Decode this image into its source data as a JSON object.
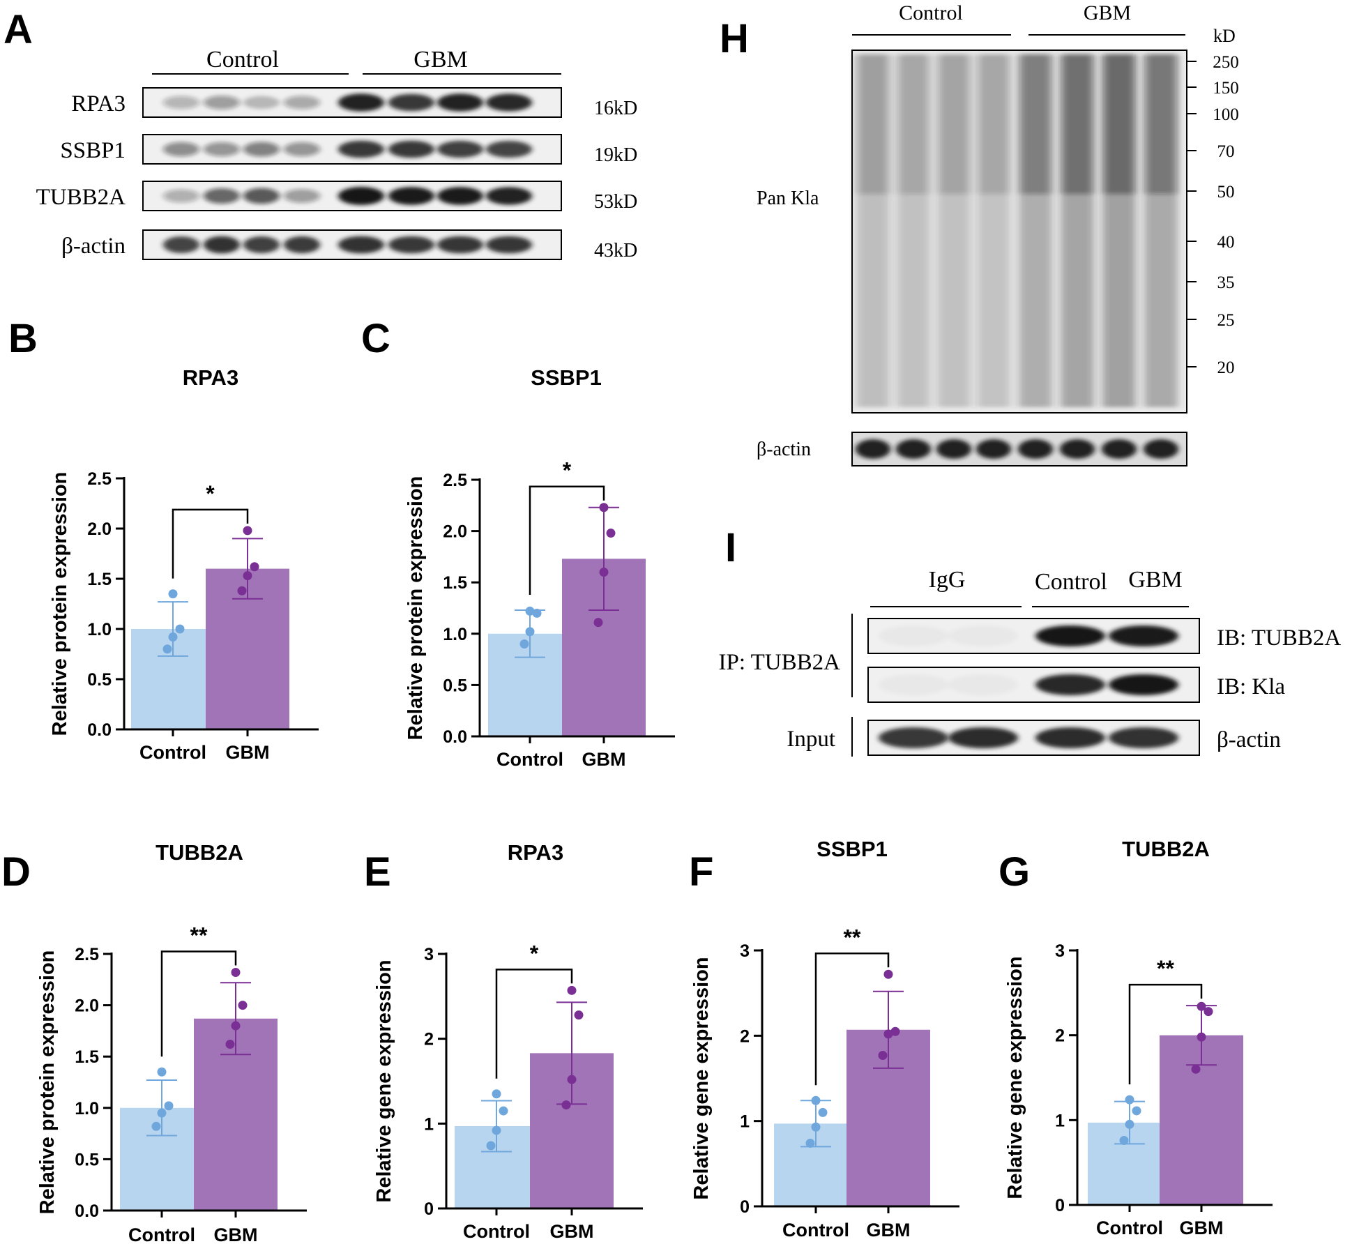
{
  "panel_letters": {
    "A": "A",
    "B": "B",
    "C": "C",
    "D": "D",
    "E": "E",
    "F": "F",
    "G": "G",
    "H": "H",
    "I": "I"
  },
  "colors": {
    "control_bar": "#b8d5ef",
    "control_dot": "#6fa7dc",
    "gbm_bar": "#a173b7",
    "gbm_dot": "#7a2f94",
    "blot_bg": "#f0f0f0",
    "band": "#151515"
  },
  "panel_a": {
    "groups": [
      "Control",
      "GBM"
    ],
    "rows": [
      {
        "name": "RPA3",
        "size": "16kD",
        "control": [
          0.28,
          0.38,
          0.24,
          0.33
        ],
        "gbm": [
          0.95,
          0.85,
          0.95,
          0.92
        ]
      },
      {
        "name": "SSBP1",
        "size": "19kD",
        "control": [
          0.45,
          0.42,
          0.5,
          0.42
        ],
        "gbm": [
          0.85,
          0.85,
          0.82,
          0.8
        ]
      },
      {
        "name": "TUBB2A",
        "size": "53kD",
        "control": [
          0.3,
          0.62,
          0.68,
          0.38
        ],
        "gbm": [
          1.0,
          0.98,
          0.98,
          0.95
        ]
      },
      {
        "name": "β-actin",
        "size": "43kD",
        "control": [
          0.8,
          0.88,
          0.82,
          0.84
        ],
        "gbm": [
          0.88,
          0.85,
          0.86,
          0.86
        ]
      }
    ]
  },
  "panel_h": {
    "groups": [
      "Control",
      "GBM"
    ],
    "kd_label": "kD",
    "markers": [
      "250",
      "150",
      "100",
      "70",
      "50",
      "40",
      "35",
      "25",
      "20"
    ],
    "label": "Pan Kla",
    "loading": "β-actin",
    "lane_intensity": [
      0.45,
      0.38,
      0.42,
      0.4,
      0.72,
      0.85,
      0.9,
      0.78
    ]
  },
  "panel_i": {
    "groups": [
      "IgG",
      "Control",
      "GBM"
    ],
    "ip_label": "IP: TUBB2A",
    "input_label": "Input",
    "rows": [
      {
        "name": "IB: TUBB2A",
        "bands": [
          0.03,
          0.03,
          1.0,
          0.98
        ]
      },
      {
        "name": "IB: Kla",
        "bands": [
          0.02,
          0.02,
          0.92,
          1.0
        ]
      },
      {
        "name": "β-actin",
        "bands": [
          0.85,
          0.9,
          0.9,
          0.88
        ]
      }
    ]
  },
  "chart_data": [
    {
      "panel": "B",
      "type": "bar",
      "title": "RPA3",
      "ylabel": "Relative protein expression",
      "categories": [
        "Control",
        "GBM"
      ],
      "ylim": [
        0,
        2.5
      ],
      "yticks": [
        "0.0",
        "0.5",
        "1.0",
        "1.5",
        "2.0",
        "2.5"
      ],
      "values": [
        1.0,
        1.6
      ],
      "error": [
        0.27,
        0.3
      ],
      "points": [
        [
          1.35,
          1.0,
          0.92,
          0.8
        ],
        [
          1.98,
          1.62,
          1.53,
          1.38
        ]
      ],
      "significance": "*"
    },
    {
      "panel": "C",
      "type": "bar",
      "title": "SSBP1",
      "ylabel": "Relative protein expression",
      "categories": [
        "Control",
        "GBM"
      ],
      "ylim": [
        0,
        2.5
      ],
      "yticks": [
        "0.0",
        "0.5",
        "1.0",
        "1.5",
        "2.0",
        "2.5"
      ],
      "values": [
        1.0,
        1.73
      ],
      "error": [
        0.23,
        0.5
      ],
      "points": [
        [
          1.22,
          1.2,
          1.02,
          0.9
        ],
        [
          2.23,
          1.98,
          1.6,
          1.11
        ]
      ],
      "significance": "*"
    },
    {
      "panel": "D",
      "type": "bar",
      "title": "TUBB2A",
      "ylabel": "Relative protein expression",
      "categories": [
        "Control",
        "GBM"
      ],
      "ylim": [
        0,
        2.5
      ],
      "yticks": [
        "0.0",
        "0.5",
        "1.0",
        "1.5",
        "2.0",
        "2.5"
      ],
      "values": [
        1.0,
        1.87
      ],
      "error": [
        0.27,
        0.35
      ],
      "points": [
        [
          1.35,
          1.02,
          0.95,
          0.82
        ],
        [
          2.32,
          2.0,
          1.8,
          1.62
        ]
      ],
      "significance": "**"
    },
    {
      "panel": "E",
      "type": "bar",
      "title": "RPA3",
      "ylabel": "Relative gene expression",
      "categories": [
        "Control",
        "GBM"
      ],
      "ylim": [
        0,
        3
      ],
      "yticks": [
        "0",
        "1",
        "2",
        "3"
      ],
      "values": [
        0.97,
        1.83
      ],
      "error": [
        0.3,
        0.6
      ],
      "points": [
        [
          1.35,
          1.15,
          0.92,
          0.74
        ],
        [
          2.57,
          2.28,
          1.52,
          1.22
        ]
      ],
      "significance": "*"
    },
    {
      "panel": "F",
      "type": "bar",
      "title": "SSBP1",
      "ylabel": "Relative gene expression",
      "categories": [
        "Control",
        "GBM"
      ],
      "ylim": [
        0,
        3
      ],
      "yticks": [
        "0",
        "1",
        "2",
        "3"
      ],
      "values": [
        0.97,
        2.07
      ],
      "error": [
        0.27,
        0.45
      ],
      "points": [
        [
          1.24,
          1.1,
          0.93,
          0.74
        ],
        [
          2.72,
          2.05,
          2.02,
          1.77
        ]
      ],
      "significance": "**"
    },
    {
      "panel": "G",
      "type": "bar",
      "title": "TUBB2A",
      "ylabel": "Relative gene expression",
      "categories": [
        "Control",
        "GBM"
      ],
      "ylim": [
        0,
        3
      ],
      "yticks": [
        "0",
        "1",
        "2",
        "3"
      ],
      "values": [
        0.97,
        2.0
      ],
      "error": [
        0.25,
        0.35
      ],
      "points": [
        [
          1.24,
          1.11,
          0.95,
          0.76
        ],
        [
          2.34,
          2.28,
          1.98,
          1.6
        ]
      ],
      "significance": "**"
    }
  ]
}
